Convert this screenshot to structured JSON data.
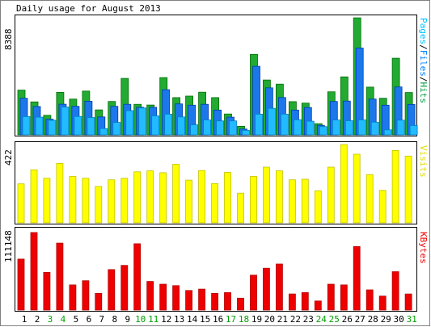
{
  "chart_data": [
    {
      "type": "bar",
      "panel": "top",
      "title": "Daily usage for August 2013",
      "ymax_label": "8388",
      "ylim": [
        0,
        8388
      ],
      "right_label_parts": [
        {
          "text": "Pages",
          "color": "#00c0ff"
        },
        {
          "text": "/",
          "color": "#000000"
        },
        {
          "text": "Files",
          "color": "#0080ff"
        },
        {
          "text": "/",
          "color": "#000000"
        },
        {
          "text": "Hits",
          "color": "#00a040"
        }
      ],
      "categories": [
        "1",
        "2",
        "3",
        "4",
        "5",
        "6",
        "7",
        "8",
        "9",
        "10",
        "11",
        "12",
        "13",
        "14",
        "15",
        "16",
        "17",
        "18",
        "19",
        "20",
        "21",
        "22",
        "23",
        "24",
        "25",
        "26",
        "27",
        "28",
        "29",
        "30",
        "31"
      ],
      "weekend_days": [
        "3",
        "4",
        "10",
        "11",
        "17",
        "18",
        "24",
        "25",
        "31"
      ],
      "series": [
        {
          "name": "Hits",
          "color": "#22aa33",
          "values": [
            3140,
            2310,
            1370,
            2980,
            2510,
            3070,
            1750,
            2340,
            3960,
            2140,
            2090,
            4020,
            2610,
            2720,
            2990,
            2610,
            1460,
            600,
            5650,
            3850,
            3560,
            2330,
            2230,
            780,
            3020,
            4070,
            8210,
            3350,
            2570,
            5380,
            2970
          ]
        },
        {
          "name": "Files",
          "color": "#1c78ea",
          "values": [
            2570,
            1990,
            1100,
            2150,
            2000,
            2360,
            1260,
            2000,
            2140,
            1930,
            1930,
            3170,
            2170,
            2080,
            2140,
            1740,
            1240,
            410,
            4810,
            3300,
            2620,
            1740,
            1920,
            670,
            2340,
            2370,
            6090,
            2510,
            2080,
            3360,
            2130
          ]
        },
        {
          "name": "Pages",
          "color": "#22bbff",
          "values": [
            1280,
            1240,
            1020,
            1950,
            1290,
            1220,
            440,
            870,
            1700,
            1890,
            1330,
            1450,
            1260,
            710,
            1050,
            980,
            980,
            310,
            1450,
            1860,
            1450,
            1060,
            960,
            580,
            1040,
            990,
            1050,
            890,
            350,
            1030,
            660
          ]
        }
      ]
    },
    {
      "type": "bar",
      "panel": "middle",
      "ymax_label": "422",
      "ylim": [
        0,
        422
      ],
      "right_label": "Visits",
      "right_label_color": "#dddd00",
      "series": [
        {
          "name": "Visits",
          "color": "#ffff00",
          "values": [
            210,
            286,
            240,
            320,
            250,
            240,
            196,
            232,
            240,
            275,
            280,
            270,
            316,
            230,
            282,
            212,
            272,
            160,
            250,
            300,
            280,
            232,
            235,
            173,
            300,
            422,
            370,
            260,
            175,
            390,
            360
          ]
        }
      ]
    },
    {
      "type": "bar",
      "panel": "bottom",
      "ymax_label": "111148",
      "ylim": [
        0,
        111148
      ],
      "right_label": "KBytes",
      "right_label_color": "#ee0000",
      "series": [
        {
          "name": "KBytes",
          "color": "#ee0000",
          "values": [
            73000,
            111148,
            54000,
            96000,
            36000,
            42000,
            24000,
            58000,
            64000,
            95000,
            41000,
            37000,
            35000,
            28000,
            30000,
            24000,
            25000,
            17000,
            50000,
            60000,
            66000,
            23000,
            25000,
            13000,
            37000,
            36000,
            91000,
            29000,
            20000,
            55000,
            23000
          ]
        }
      ]
    }
  ]
}
